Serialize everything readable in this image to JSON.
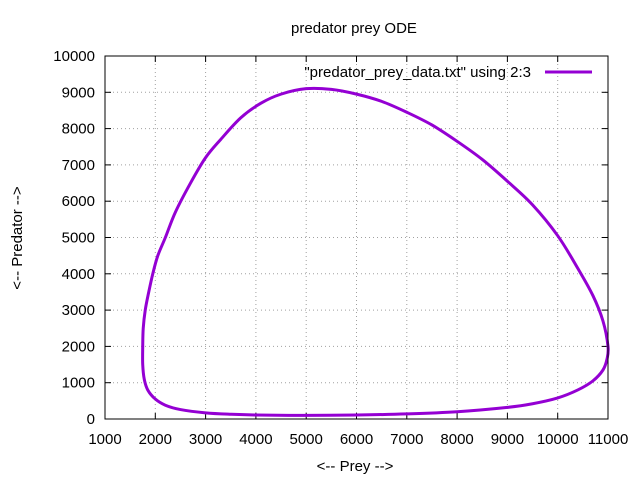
{
  "chart_data": {
    "type": "line",
    "title": "predator prey ODE",
    "xlabel": "<-- Prey -->",
    "ylabel": "<-- Predator -->",
    "xlim": [
      1000,
      11000
    ],
    "ylim": [
      0,
      10000
    ],
    "xticks": [
      "1000",
      "2000",
      "3000",
      "4000",
      "5000",
      "6000",
      "7000",
      "8000",
      "9000",
      "10000",
      "11000"
    ],
    "yticks": [
      "0",
      "1000",
      "2000",
      "3000",
      "4000",
      "5000",
      "6000",
      "7000",
      "8000",
      "9000",
      "10000"
    ],
    "grid": true,
    "legend_position": "top-right",
    "series": [
      {
        "name": "\"predator_prey_data.txt\" using 2:3",
        "color": "#9400d3",
        "points": [
          [
            11000,
            2000
          ],
          [
            10980,
            1650
          ],
          [
            10900,
            1350
          ],
          [
            10700,
            1050
          ],
          [
            10400,
            800
          ],
          [
            10000,
            580
          ],
          [
            9500,
            420
          ],
          [
            9000,
            320
          ],
          [
            8000,
            200
          ],
          [
            7000,
            140
          ],
          [
            6000,
            110
          ],
          [
            5000,
            100
          ],
          [
            4000,
            110
          ],
          [
            3500,
            130
          ],
          [
            3000,
            170
          ],
          [
            2500,
            260
          ],
          [
            2200,
            380
          ],
          [
            2000,
            550
          ],
          [
            1850,
            800
          ],
          [
            1780,
            1100
          ],
          [
            1750,
            1500
          ],
          [
            1750,
            2000
          ],
          [
            1760,
            2500
          ],
          [
            1800,
            3000
          ],
          [
            1870,
            3500
          ],
          [
            1950,
            4000
          ],
          [
            2050,
            4500
          ],
          [
            2200,
            5000
          ],
          [
            2400,
            5700
          ],
          [
            2700,
            6500
          ],
          [
            3000,
            7200
          ],
          [
            3300,
            7700
          ],
          [
            3700,
            8300
          ],
          [
            4100,
            8700
          ],
          [
            4500,
            8950
          ],
          [
            5000,
            9100
          ],
          [
            5500,
            9080
          ],
          [
            6000,
            8950
          ],
          [
            6500,
            8750
          ],
          [
            7000,
            8450
          ],
          [
            7500,
            8100
          ],
          [
            8000,
            7650
          ],
          [
            8500,
            7150
          ],
          [
            9000,
            6550
          ],
          [
            9500,
            5900
          ],
          [
            10000,
            5050
          ],
          [
            10400,
            4150
          ],
          [
            10700,
            3400
          ],
          [
            10900,
            2700
          ],
          [
            11000,
            2000
          ]
        ]
      }
    ]
  }
}
